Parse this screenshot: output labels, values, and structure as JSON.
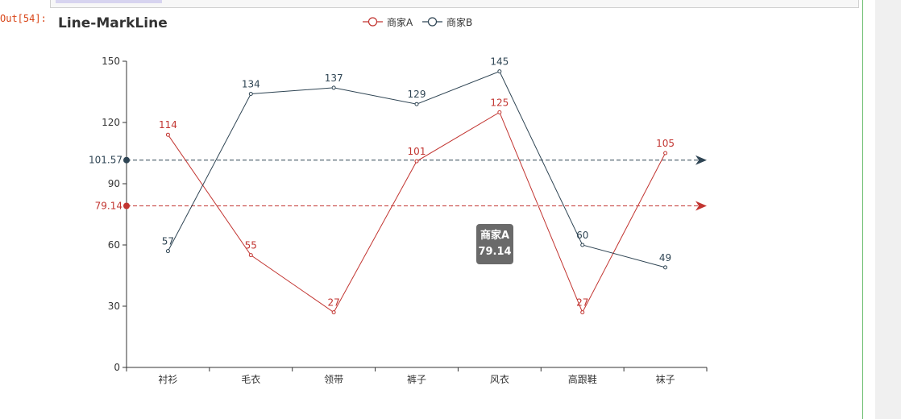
{
  "notebook": {
    "out_prompt": "Out[54]:"
  },
  "tooltip": {
    "series": "商家A",
    "value": "79.14"
  },
  "chart_data": {
    "type": "line",
    "title": "Line-MarkLine",
    "categories": [
      "衬衫",
      "毛衣",
      "领带",
      "裤子",
      "风衣",
      "高跟鞋",
      "袜子"
    ],
    "ylim": [
      0,
      150
    ],
    "yticks": [
      0,
      30,
      60,
      90,
      120,
      150
    ],
    "legend_position": "top",
    "series": [
      {
        "name": "商家A",
        "color": "#c23531",
        "values": [
          114,
          55,
          27,
          101,
          125,
          27,
          105
        ],
        "markline": {
          "label": "79.14",
          "value": 79.14
        }
      },
      {
        "name": "商家B",
        "color": "#2f4554",
        "values": [
          57,
          134,
          137,
          129,
          145,
          60,
          49
        ],
        "markline": {
          "label": "101.57",
          "value": 101.57
        }
      }
    ]
  }
}
